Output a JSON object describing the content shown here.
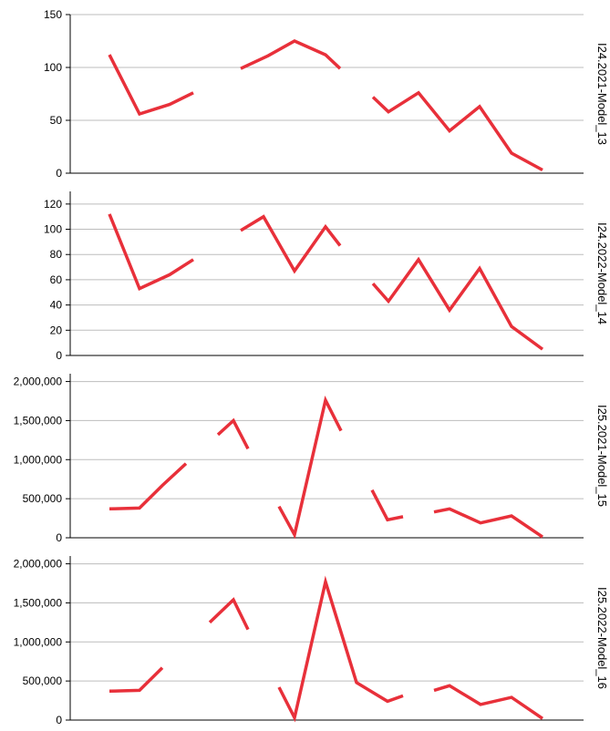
{
  "chart_data": {
    "type": "line",
    "grid": true,
    "line_color": "#e8303a",
    "panels": [
      {
        "name": "I24.2021-Model_13",
        "ylim": [
          0,
          150
        ],
        "yticks": [
          0,
          50,
          100,
          150
        ],
        "ytick_labels": [
          "0",
          "50",
          "100",
          "150"
        ],
        "segments": [
          [
            [
              0,
              112
            ],
            [
              1,
              56
            ],
            [
              2,
              65
            ],
            [
              3,
              76
            ]
          ],
          [
            [
              5,
              99
            ],
            [
              6,
              111
            ],
            [
              7,
              125
            ],
            [
              8,
              112
            ],
            [
              9,
              99
            ]
          ],
          [
            [
              10,
              72
            ],
            [
              11,
              58
            ],
            [
              12,
              76
            ],
            [
              13,
              40
            ],
            [
              14,
              63
            ],
            [
              15,
              19
            ],
            [
              16,
              3
            ]
          ]
        ]
      },
      {
        "name": "I24.2022-Model_14",
        "ylim": [
          0,
          130
        ],
        "yticks": [
          0,
          20,
          40,
          60,
          80,
          100,
          120
        ],
        "ytick_labels": [
          "0",
          "20",
          "40",
          "60",
          "80",
          "100",
          "120"
        ],
        "segments": [
          [
            [
              0,
              112
            ],
            [
              1,
              53
            ],
            [
              2,
              64
            ],
            [
              3,
              76
            ]
          ],
          [
            [
              5,
              99
            ],
            [
              6,
              110
            ],
            [
              7,
              67
            ],
            [
              8,
              102
            ],
            [
              9,
              87
            ]
          ],
          [
            [
              10,
              57
            ],
            [
              11,
              43
            ],
            [
              12,
              76
            ],
            [
              13,
              36
            ],
            [
              14,
              69
            ],
            [
              15,
              23
            ],
            [
              16,
              5
            ]
          ]
        ]
      },
      {
        "name": "I25.2021-Model_15",
        "ylim": [
          0,
          2100000
        ],
        "yticks": [
          0,
          500000,
          1000000,
          1500000,
          2000000
        ],
        "ytick_labels": [
          "0",
          "500,000",
          "1,000,000",
          "1,500,000",
          "2,000,000"
        ],
        "segments": [
          [
            [
              0,
              370000
            ],
            [
              1,
              380000
            ],
            [
              2,
              670000
            ],
            [
              3,
              950000
            ]
          ],
          [
            [
              4,
              1320000
            ],
            [
              5,
              1500000
            ],
            [
              6,
              1140000
            ]
          ],
          [
            [
              7,
              400000
            ],
            [
              8,
              40000
            ],
            [
              9,
              1760000
            ],
            [
              10,
              1370000
            ]
          ],
          [
            [
              11,
              610000
            ],
            [
              12,
              230000
            ],
            [
              13,
              270000
            ]
          ],
          [
            [
              14,
              330000
            ],
            [
              15,
              370000
            ],
            [
              16,
              190000
            ],
            [
              17,
              280000
            ],
            [
              18,
              10000
            ]
          ]
        ]
      },
      {
        "name": "I25.2022-Model_16",
        "ylim": [
          0,
          2100000
        ],
        "yticks": [
          0,
          500000,
          1000000,
          1500000,
          2000000
        ],
        "ytick_labels": [
          "0",
          "500,000",
          "1,000,000",
          "1,500,000",
          "2,000,000"
        ],
        "segments": [
          [
            [
              0,
              370000
            ],
            [
              1,
              380000
            ],
            [
              2,
              670000
            ]
          ],
          [
            [
              4,
              1250000
            ],
            [
              5,
              1540000
            ],
            [
              6,
              1160000
            ]
          ],
          [
            [
              7,
              420000
            ],
            [
              8,
              30000
            ],
            [
              9,
              1770000
            ],
            [
              10,
              480000
            ],
            [
              11,
              240000
            ],
            [
              12,
              310000
            ]
          ],
          [
            [
              13,
              380000
            ],
            [
              14,
              440000
            ],
            [
              15,
              200000
            ],
            [
              16,
              290000
            ],
            [
              17,
              20000
            ]
          ]
        ]
      }
    ]
  }
}
